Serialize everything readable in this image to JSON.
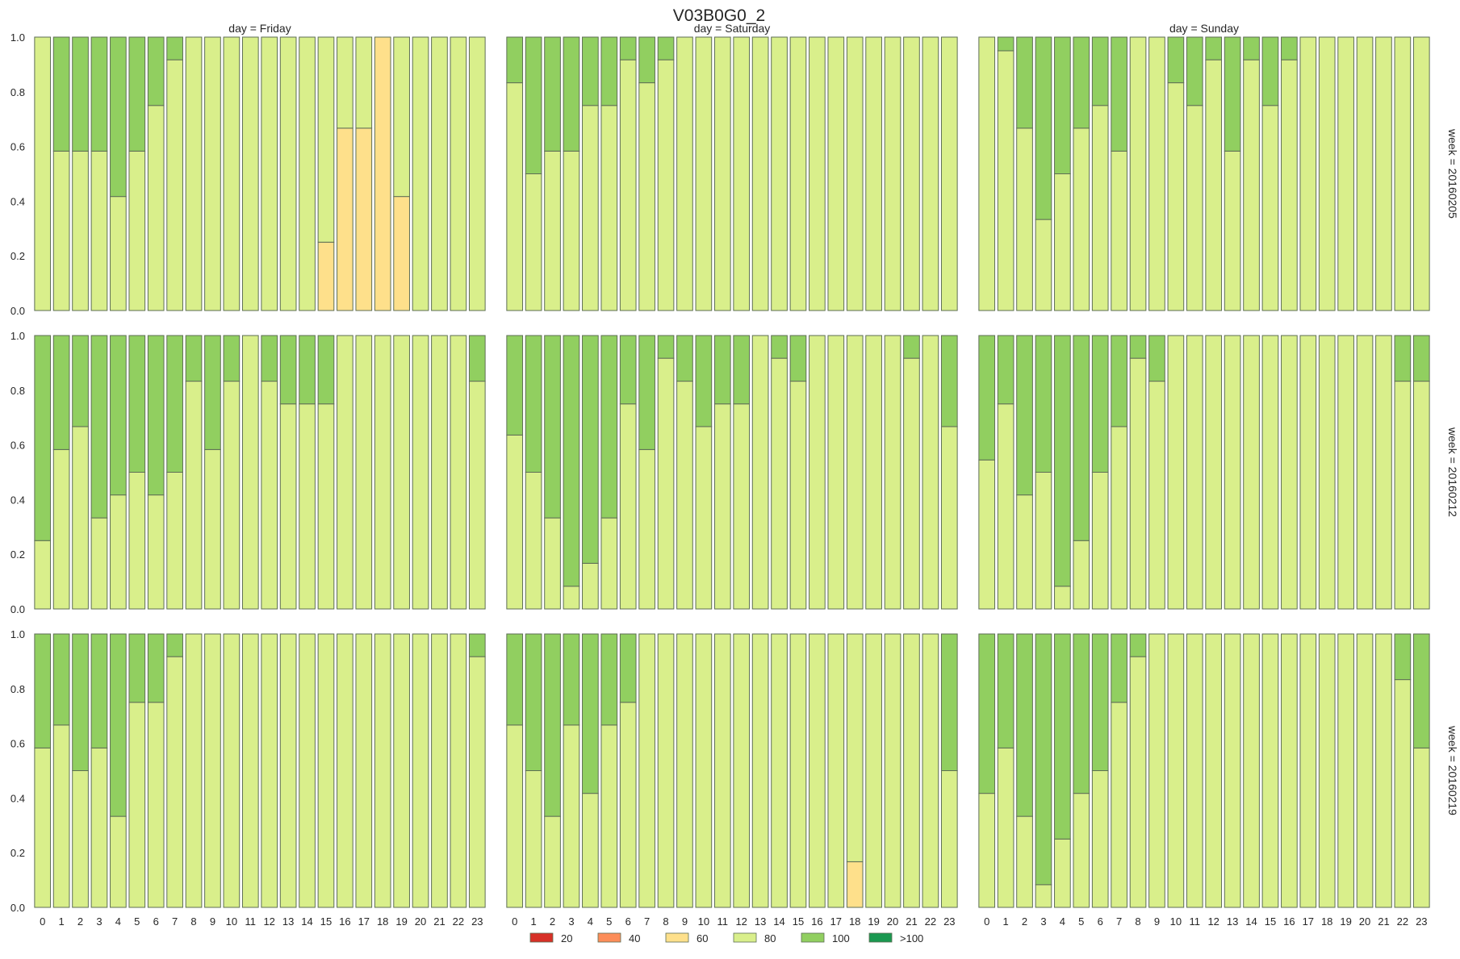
{
  "chart_data": {
    "type": "bar",
    "stacked": true,
    "title": "V03B0G0_2",
    "categories": [
      "0",
      "1",
      "2",
      "3",
      "4",
      "5",
      "6",
      "7",
      "8",
      "9",
      "10",
      "11",
      "12",
      "13",
      "14",
      "15",
      "16",
      "17",
      "18",
      "19",
      "20",
      "21",
      "22",
      "23"
    ],
    "ylim": [
      0,
      1
    ],
    "y_ticks": [
      "0.0",
      "0.2",
      "0.4",
      "0.6",
      "0.8",
      "1.0"
    ],
    "grid": false,
    "legend_position": "bottom-center",
    "legend": [
      {
        "label": "20",
        "color": "#d73027"
      },
      {
        "label": "40",
        "color": "#fc8d59"
      },
      {
        "label": "60",
        "color": "#fee08b"
      },
      {
        "label": "80",
        "color": "#d9ef8b"
      },
      {
        "label": "100",
        "color": "#91cf60"
      },
      {
        "label": ">100",
        "color": "#1a9850"
      }
    ],
    "column_titles": [
      "day = Friday",
      "day = Saturday",
      "day = Sunday"
    ],
    "row_titles": [
      "week = 20160205",
      "week = 20160212",
      "week = 20160219"
    ],
    "facets": [
      {
        "day": "Friday",
        "week": "20160205",
        "series": [
          {
            "name": "60",
            "values": [
              0,
              0,
              0,
              0,
              0,
              0,
              0,
              0,
              0,
              0,
              0,
              0,
              0,
              0,
              0,
              0.25,
              0.667,
              0.667,
              1.0,
              0.417,
              0,
              0,
              0,
              0
            ]
          },
          {
            "name": "80",
            "values": [
              1.0,
              0.583,
              0.583,
              0.583,
              0.417,
              0.583,
              0.75,
              0.917,
              1.0,
              1.0,
              1.0,
              1.0,
              1.0,
              1.0,
              1.0,
              0.75,
              0.333,
              0.333,
              0,
              0.583,
              1.0,
              1.0,
              1.0,
              1.0
            ]
          },
          {
            "name": "100",
            "values": [
              0,
              0.417,
              0.417,
              0.417,
              0.583,
              0.417,
              0.25,
              0.083,
              0,
              0,
              0,
              0,
              0,
              0,
              0,
              0,
              0,
              0,
              0,
              0,
              0,
              0,
              0,
              0
            ]
          }
        ]
      },
      {
        "day": "Saturday",
        "week": "20160205",
        "series": [
          {
            "name": "80",
            "values": [
              0.833,
              0.5,
              0.583,
              0.583,
              0.75,
              0.75,
              0.917,
              0.833,
              0.917,
              1.0,
              1.0,
              1.0,
              1.0,
              1.0,
              1.0,
              1.0,
              1.0,
              1.0,
              1.0,
              1.0,
              1.0,
              1.0,
              1.0,
              1.0
            ]
          },
          {
            "name": "100",
            "values": [
              0.167,
              0.5,
              0.417,
              0.417,
              0.25,
              0.25,
              0.083,
              0.167,
              0.083,
              0,
              0,
              0,
              0,
              0,
              0,
              0,
              0,
              0,
              0,
              0,
              0,
              0,
              0,
              0
            ]
          }
        ]
      },
      {
        "day": "Sunday",
        "week": "20160205",
        "series": [
          {
            "name": "80",
            "values": [
              1.0,
              0.95,
              0.667,
              0.333,
              0.5,
              0.667,
              0.75,
              0.583,
              1.0,
              1.0,
              0.833,
              0.75,
              0.917,
              0.583,
              0.917,
              0.75,
              0.917,
              1.0,
              1.0,
              1.0,
              1.0,
              1.0,
              1.0,
              1.0
            ]
          },
          {
            "name": "100",
            "values": [
              0,
              0.05,
              0.333,
              0.667,
              0.5,
              0.333,
              0.25,
              0.417,
              0,
              0,
              0.167,
              0.25,
              0.083,
              0.417,
              0.083,
              0.25,
              0.083,
              0,
              0,
              0,
              0,
              0,
              0,
              0
            ]
          }
        ]
      },
      {
        "day": "Friday",
        "week": "20160212",
        "series": [
          {
            "name": "80",
            "values": [
              0.25,
              0.583,
              0.667,
              0.333,
              0.417,
              0.5,
              0.417,
              0.5,
              0.833,
              0.583,
              0.833,
              1.0,
              0.833,
              0.75,
              0.75,
              0.75,
              1.0,
              1.0,
              1.0,
              1.0,
              1.0,
              1.0,
              1.0,
              0.833
            ]
          },
          {
            "name": "100",
            "values": [
              0.75,
              0.417,
              0.333,
              0.667,
              0.583,
              0.5,
              0.583,
              0.5,
              0.167,
              0.417,
              0.167,
              0,
              0.167,
              0.25,
              0.25,
              0.25,
              0,
              0,
              0,
              0,
              0,
              0,
              0,
              0.167
            ]
          }
        ]
      },
      {
        "day": "Saturday",
        "week": "20160212",
        "series": [
          {
            "name": "80",
            "values": [
              0.636,
              0.5,
              0.333,
              0.083,
              0.167,
              0.333,
              0.75,
              0.583,
              0.917,
              0.833,
              0.667,
              0.75,
              0.75,
              1.0,
              0.917,
              0.833,
              1.0,
              1.0,
              1.0,
              1.0,
              1.0,
              0.917,
              1.0,
              0.667
            ]
          },
          {
            "name": "100",
            "values": [
              0.364,
              0.5,
              0.667,
              0.917,
              0.833,
              0.667,
              0.25,
              0.417,
              0.083,
              0.167,
              0.333,
              0.25,
              0.25,
              0,
              0.083,
              0.167,
              0,
              0,
              0,
              0,
              0,
              0.083,
              0,
              0.333
            ]
          }
        ]
      },
      {
        "day": "Sunday",
        "week": "20160212",
        "series": [
          {
            "name": "80",
            "values": [
              0.545,
              0.75,
              0.417,
              0.5,
              0.083,
              0.25,
              0.5,
              0.667,
              0.917,
              0.833,
              1.0,
              1.0,
              1.0,
              1.0,
              1.0,
              1.0,
              1.0,
              1.0,
              1.0,
              1.0,
              1.0,
              1.0,
              0.833,
              0.833
            ]
          },
          {
            "name": "100",
            "values": [
              0.455,
              0.25,
              0.583,
              0.5,
              0.917,
              0.75,
              0.5,
              0.333,
              0.083,
              0.167,
              0,
              0,
              0,
              0,
              0,
              0,
              0,
              0,
              0,
              0,
              0,
              0,
              0.167,
              0.167
            ]
          }
        ]
      },
      {
        "day": "Friday",
        "week": "20160219",
        "series": [
          {
            "name": "80",
            "values": [
              0.583,
              0.667,
              0.5,
              0.583,
              0.333,
              0.75,
              0.75,
              0.917,
              1.0,
              1.0,
              1.0,
              1.0,
              1.0,
              1.0,
              1.0,
              1.0,
              1.0,
              1.0,
              1.0,
              1.0,
              1.0,
              1.0,
              1.0,
              0.917
            ]
          },
          {
            "name": "100",
            "values": [
              0.417,
              0.333,
              0.5,
              0.417,
              0.667,
              0.25,
              0.25,
              0.083,
              0,
              0,
              0,
              0,
              0,
              0,
              0,
              0,
              0,
              0,
              0,
              0,
              0,
              0,
              0,
              0.083
            ]
          }
        ]
      },
      {
        "day": "Saturday",
        "week": "20160219",
        "series": [
          {
            "name": "60",
            "values": [
              0,
              0,
              0,
              0,
              0,
              0,
              0,
              0,
              0,
              0,
              0,
              0,
              0,
              0,
              0,
              0,
              0,
              0,
              0.167,
              0,
              0,
              0,
              0,
              0
            ]
          },
          {
            "name": "80",
            "values": [
              0.667,
              0.5,
              0.333,
              0.667,
              0.417,
              0.667,
              0.75,
              1.0,
              1.0,
              1.0,
              1.0,
              1.0,
              1.0,
              1.0,
              1.0,
              1.0,
              1.0,
              1.0,
              0.833,
              1.0,
              1.0,
              1.0,
              1.0,
              0.5
            ]
          },
          {
            "name": "100",
            "values": [
              0.333,
              0.5,
              0.667,
              0.333,
              0.583,
              0.333,
              0.25,
              0,
              0,
              0,
              0,
              0,
              0,
              0,
              0,
              0,
              0,
              0,
              0,
              0,
              0,
              0,
              0,
              0.5
            ]
          }
        ]
      },
      {
        "day": "Sunday",
        "week": "20160219",
        "series": [
          {
            "name": "80",
            "values": [
              0.417,
              0.583,
              0.333,
              0.083,
              0.25,
              0.417,
              0.5,
              0.75,
              0.917,
              1.0,
              1.0,
              1.0,
              1.0,
              1.0,
              1.0,
              1.0,
              1.0,
              1.0,
              1.0,
              1.0,
              1.0,
              1.0,
              0.833,
              0.583
            ]
          },
          {
            "name": "100",
            "values": [
              0.583,
              0.417,
              0.667,
              0.917,
              0.75,
              0.583,
              0.5,
              0.25,
              0.083,
              0,
              0,
              0,
              0,
              0,
              0,
              0,
              0,
              0,
              0,
              0,
              0,
              0,
              0.167,
              0.417
            ]
          }
        ]
      }
    ]
  }
}
